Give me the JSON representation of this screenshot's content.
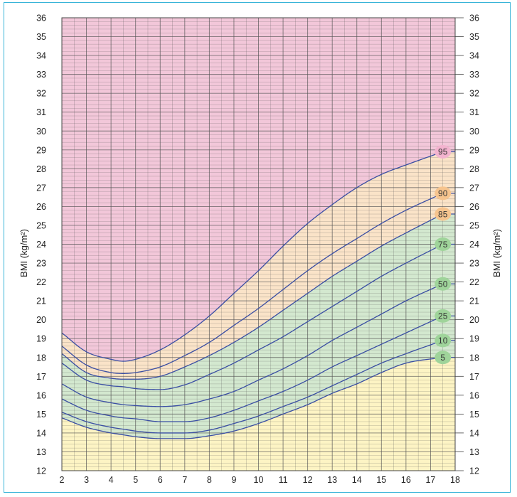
{
  "chart_data": {
    "type": "line",
    "ylabel_left": "BMI (kg/m²)",
    "ylabel_right": "BMI (kg/m²)",
    "xlim": [
      2,
      18
    ],
    "ylim": [
      12,
      36
    ],
    "x_ticks": [
      "2",
      "3",
      "4",
      "5",
      "6",
      "7",
      "8",
      "9",
      "10",
      "11",
      "12",
      "13",
      "14",
      "15",
      "16",
      "17",
      "18"
    ],
    "y_ticks": [
      "12",
      "13",
      "14",
      "15",
      "16",
      "17",
      "18",
      "19",
      "20",
      "21",
      "22",
      "23",
      "24",
      "25",
      "26",
      "27",
      "28",
      "29",
      "30",
      "31",
      "32",
      "33",
      "34",
      "35",
      "36"
    ],
    "x_minor_step": 0.5,
    "y_minor_step": 0.2,
    "grid": true,
    "zone_colors": {
      "above_95": "#f2c7d9",
      "between_85_95": "#fae3c8",
      "between_5_85": "#d3e8cf",
      "below_5": "#fdf4c4"
    },
    "line_color": "#3a4ea3",
    "series": [
      {
        "name": "95",
        "label_color": "#f3b3cf",
        "x": [
          2,
          3,
          4,
          4.5,
          5,
          6,
          7,
          8,
          9,
          10,
          11,
          12,
          13,
          14,
          15,
          16,
          17.5
        ],
        "y": [
          19.3,
          18.3,
          17.9,
          17.8,
          17.9,
          18.4,
          19.2,
          20.2,
          21.4,
          22.6,
          23.9,
          25.1,
          26.1,
          27.0,
          27.7,
          28.2,
          28.9
        ]
      },
      {
        "name": "90",
        "label_color": "#f6c48e",
        "x": [
          2,
          3,
          4,
          4.5,
          5,
          6,
          7,
          8,
          9,
          10,
          11,
          12,
          13,
          14,
          15,
          16,
          17.5
        ],
        "y": [
          18.6,
          17.6,
          17.2,
          17.15,
          17.2,
          17.5,
          18.1,
          18.8,
          19.7,
          20.6,
          21.6,
          22.6,
          23.5,
          24.3,
          25.1,
          25.8,
          26.7
        ]
      },
      {
        "name": "85",
        "label_color": "#f6c48e",
        "x": [
          2,
          3,
          4,
          4.5,
          5,
          6,
          7,
          8,
          9,
          10,
          11,
          12,
          13,
          14,
          15,
          16,
          17.5
        ],
        "y": [
          18.2,
          17.2,
          16.9,
          16.85,
          16.85,
          17.0,
          17.5,
          18.1,
          18.8,
          19.6,
          20.5,
          21.4,
          22.3,
          23.1,
          23.9,
          24.6,
          25.6
        ]
      },
      {
        "name": "75",
        "label_color": "#9fd49a",
        "x": [
          2,
          3,
          4,
          4.5,
          5,
          6,
          7,
          8,
          9,
          10,
          11,
          12,
          13,
          14,
          15,
          16,
          17.5
        ],
        "y": [
          17.7,
          16.8,
          16.5,
          16.45,
          16.35,
          16.3,
          16.55,
          17.1,
          17.7,
          18.4,
          19.1,
          19.9,
          20.7,
          21.5,
          22.3,
          23.0,
          24.0
        ]
      },
      {
        "name": "50",
        "label_color": "#9fd49a",
        "x": [
          2,
          3,
          4,
          4.5,
          5,
          6,
          7,
          8,
          9,
          10,
          11,
          12,
          13,
          14,
          15,
          16,
          17.5
        ],
        "y": [
          16.6,
          15.9,
          15.6,
          15.5,
          15.45,
          15.4,
          15.5,
          15.8,
          16.2,
          16.8,
          17.4,
          18.1,
          18.9,
          19.6,
          20.3,
          21.0,
          21.9
        ]
      },
      {
        "name": "25",
        "label_color": "#9fd49a",
        "x": [
          2,
          3,
          4,
          4.5,
          5,
          6,
          7,
          8,
          9,
          10,
          11,
          12,
          13,
          14,
          15,
          16,
          17.5
        ],
        "y": [
          15.8,
          15.2,
          14.9,
          14.8,
          14.75,
          14.6,
          14.6,
          14.8,
          15.2,
          15.7,
          16.2,
          16.8,
          17.5,
          18.1,
          18.7,
          19.3,
          20.2
        ]
      },
      {
        "name": "10",
        "label_color": "#9fd49a",
        "x": [
          2,
          3,
          4,
          4.5,
          5,
          6,
          7,
          8,
          9,
          10,
          11,
          12,
          13,
          14,
          15,
          16,
          17.5
        ],
        "y": [
          15.1,
          14.6,
          14.3,
          14.2,
          14.1,
          14.0,
          14.0,
          14.15,
          14.5,
          14.9,
          15.4,
          15.9,
          16.5,
          17.1,
          17.7,
          18.2,
          18.9
        ]
      },
      {
        "name": "5",
        "label_color": "#9fd49a",
        "x": [
          2,
          3,
          4,
          4.5,
          5,
          6,
          7,
          8,
          9,
          10,
          11,
          12,
          13,
          14,
          15,
          16,
          17.5
        ],
        "y": [
          14.8,
          14.3,
          14.0,
          13.9,
          13.8,
          13.7,
          13.7,
          13.85,
          14.1,
          14.5,
          15.0,
          15.5,
          16.1,
          16.6,
          17.2,
          17.7,
          18.0
        ]
      }
    ]
  }
}
